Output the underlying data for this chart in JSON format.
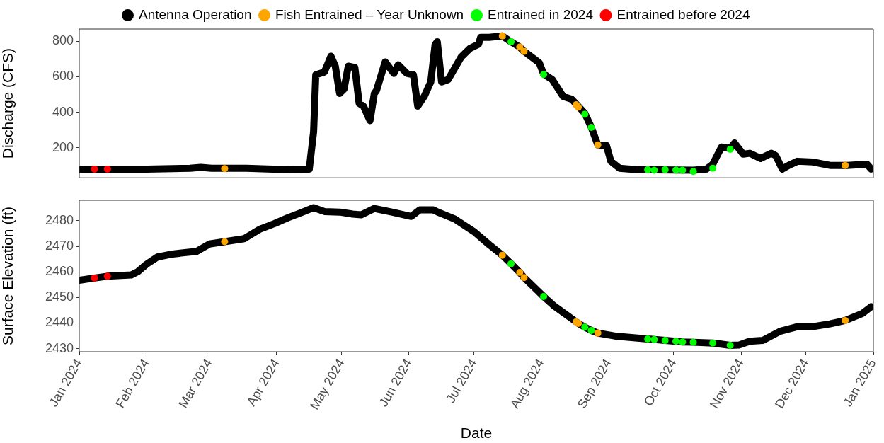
{
  "chart_data": [
    {
      "type": "line",
      "ylabel": "Discharge (CFS)",
      "legend": "top",
      "grid": false,
      "tick_labels": "y",
      "xlim": [
        "2024-01-01",
        "2025-01-01"
      ],
      "ylim": [
        31,
        869
      ],
      "yticks": [
        200,
        400,
        600,
        800
      ],
      "series": [
        {
          "name": "Antenna Operation",
          "type": "line",
          "marker": "none",
          "color": "#000000",
          "x": [
            "2024-01-01",
            "2024-02-01",
            "2024-02-21",
            "2024-02-26",
            "2024-03-02",
            "2024-03-18",
            "2024-04-04",
            "2024-04-16",
            "2024-04-18",
            "2024-04-19",
            "2024-04-23",
            "2024-04-26",
            "2024-04-28",
            "2024-04-30",
            "2024-05-02",
            "2024-05-04",
            "2024-05-07",
            "2024-05-09",
            "2024-05-11",
            "2024-05-14",
            "2024-05-16",
            "2024-05-17",
            "2024-05-21",
            "2024-05-25",
            "2024-05-27",
            "2024-05-31",
            "2024-06-03",
            "2024-06-05",
            "2024-06-08",
            "2024-06-11",
            "2024-06-13",
            "2024-06-14",
            "2024-06-16",
            "2024-06-19",
            "2024-06-22",
            "2024-06-25",
            "2024-06-29",
            "2024-07-03",
            "2024-07-04",
            "2024-07-08",
            "2024-07-14",
            "2024-07-18",
            "2024-07-22",
            "2024-07-24",
            "2024-07-31",
            "2024-08-02",
            "2024-08-06",
            "2024-08-11",
            "2024-08-15",
            "2024-08-18",
            "2024-08-21",
            "2024-08-24",
            "2024-08-27",
            "2024-08-31",
            "2024-09-02",
            "2024-09-06",
            "2024-09-14",
            "2024-10-10",
            "2024-10-16",
            "2024-10-19",
            "2024-10-23",
            "2024-10-27",
            "2024-10-29",
            "2024-11-02",
            "2024-11-05",
            "2024-11-10",
            "2024-11-15",
            "2024-11-17",
            "2024-11-20",
            "2024-11-23",
            "2024-11-27",
            "2024-12-04",
            "2024-12-12",
            "2024-12-20",
            "2024-12-29",
            "2024-12-31"
          ],
          "values": [
            80,
            80,
            85,
            90,
            85,
            85,
            78,
            80,
            290,
            611,
            627,
            716,
            660,
            506,
            530,
            660,
            652,
            450,
            434,
            353,
            506,
            523,
            684,
            619,
            668,
            619,
            611,
            434,
            490,
            571,
            781,
            797,
            571,
            584,
            648,
            711,
            759,
            783,
            822,
            822,
            830,
            797,
            767,
            743,
            679,
            616,
            584,
            489,
            473,
            434,
            394,
            315,
            216,
            212,
            124,
            85,
            77,
            74,
            80,
            108,
            204,
            196,
            227,
            164,
            169,
            140,
            169,
            156,
            80,
            101,
            124,
            120,
            101,
            101,
            108,
            80
          ]
        },
        {
          "name": "Fish Entrained – Year Unknown",
          "type": "scatter",
          "marker": "circle",
          "color": "#ffa500",
          "x": [
            "2024-03-08",
            "2024-07-14",
            "2024-07-22",
            "2024-07-24",
            "2024-08-17",
            "2024-08-18",
            "2024-08-27",
            "2024-12-19"
          ],
          "values": [
            83,
            830,
            767,
            743,
            442,
            429,
            216,
            101
          ]
        },
        {
          "name": "Entrained in 2024",
          "type": "scatter",
          "marker": "circle",
          "color": "#00ff00",
          "x": [
            "2024-07-18",
            "2024-08-02",
            "2024-08-21",
            "2024-08-24",
            "2024-09-19",
            "2024-09-22",
            "2024-09-27",
            "2024-10-02",
            "2024-10-05",
            "2024-10-10",
            "2024-10-19",
            "2024-10-27"
          ],
          "values": [
            797,
            613,
            389,
            315,
            77,
            74,
            77,
            75,
            74,
            67,
            85,
            191
          ]
        },
        {
          "name": "Entrained before 2024",
          "type": "scatter",
          "marker": "circle",
          "color": "#ff0000",
          "x": [
            "2024-01-08",
            "2024-01-14"
          ],
          "values": [
            80,
            80
          ]
        }
      ]
    },
    {
      "type": "line",
      "ylabel": "Surface Elevation (ft)",
      "xlabel": "Date",
      "legend": false,
      "grid": false,
      "xlim": [
        "2024-01-01",
        "2025-01-01"
      ],
      "xticks": [
        {
          "value": "2024-01-01",
          "label": "Jan 2024"
        },
        {
          "value": "2024-02-01",
          "label": "Feb 2024"
        },
        {
          "value": "2024-03-01",
          "label": "Mar 2024"
        },
        {
          "value": "2024-04-01",
          "label": "Apr 2024"
        },
        {
          "value": "2024-05-01",
          "label": "May 2024"
        },
        {
          "value": "2024-06-01",
          "label": "Jun 2024"
        },
        {
          "value": "2024-07-01",
          "label": "Jul 2024"
        },
        {
          "value": "2024-08-01",
          "label": "Aug 2024"
        },
        {
          "value": "2024-09-01",
          "label": "Sep 2024"
        },
        {
          "value": "2024-10-01",
          "label": "Oct 2024"
        },
        {
          "value": "2024-11-01",
          "label": "Nov 2024"
        },
        {
          "value": "2024-12-01",
          "label": "Dec 2024"
        },
        {
          "value": "2025-01-01",
          "label": "Jan 2025"
        }
      ],
      "ylim": [
        2428.8,
        2488
      ],
      "yticks": [
        2430,
        2440,
        2450,
        2460,
        2470,
        2480
      ],
      "series": [
        {
          "type": "line",
          "marker": "none",
          "color": "#000000",
          "x": [
            "2024-01-01",
            "2024-01-08",
            "2024-01-14",
            "2024-01-25",
            "2024-01-28",
            "2024-02-01",
            "2024-02-06",
            "2024-02-13",
            "2024-02-24",
            "2024-03-01",
            "2024-03-08",
            "2024-03-17",
            "2024-03-24",
            "2024-03-31",
            "2024-04-06",
            "2024-04-13",
            "2024-04-18",
            "2024-04-23",
            "2024-04-30",
            "2024-05-06",
            "2024-05-10",
            "2024-05-16",
            "2024-05-24",
            "2024-06-02",
            "2024-06-06",
            "2024-06-12",
            "2024-06-14",
            "2024-06-22",
            "2024-07-01",
            "2024-07-08",
            "2024-07-14",
            "2024-07-18",
            "2024-07-22",
            "2024-07-24",
            "2024-08-02",
            "2024-08-07",
            "2024-08-17",
            "2024-08-18",
            "2024-08-21",
            "2024-08-24",
            "2024-08-27",
            "2024-09-04",
            "2024-09-19",
            "2024-09-22",
            "2024-09-27",
            "2024-10-02",
            "2024-10-05",
            "2024-10-10",
            "2024-10-19",
            "2024-10-27",
            "2024-10-31",
            "2024-11-05",
            "2024-11-11",
            "2024-11-19",
            "2024-11-27",
            "2024-12-04",
            "2024-12-12",
            "2024-12-19",
            "2024-12-27",
            "2024-12-31"
          ],
          "values": [
            2456.7,
            2457.6,
            2458.3,
            2458.8,
            2460.1,
            2463,
            2465.8,
            2467,
            2468,
            2470.9,
            2471.8,
            2473,
            2476.6,
            2478.9,
            2481.1,
            2483.4,
            2485.1,
            2483.6,
            2483.4,
            2482.6,
            2482.3,
            2484.8,
            2483.4,
            2481.7,
            2484.3,
            2484.3,
            2483.5,
            2480.7,
            2475.7,
            2470.6,
            2466.5,
            2463.2,
            2459.8,
            2457.8,
            2450.4,
            2446.6,
            2440.5,
            2439.9,
            2438.4,
            2437.1,
            2436.1,
            2434.9,
            2433.8,
            2433.6,
            2433.2,
            2432.9,
            2432.6,
            2432.5,
            2432.2,
            2431.3,
            2431.4,
            2432.9,
            2433.2,
            2436.8,
            2438.6,
            2438.6,
            2439.7,
            2441,
            2443.8,
            2446.4
          ]
        },
        {
          "type": "scatter",
          "marker": "circle",
          "color": "#ffa500",
          "x": [
            "2024-03-08",
            "2024-07-14",
            "2024-07-22",
            "2024-07-24",
            "2024-08-17",
            "2024-08-18",
            "2024-08-27",
            "2024-12-19"
          ],
          "values": [
            2471.8,
            2466.5,
            2459.8,
            2457.8,
            2440.5,
            2439.9,
            2436.1,
            2441
          ]
        },
        {
          "type": "scatter",
          "marker": "circle",
          "color": "#00ff00",
          "x": [
            "2024-07-18",
            "2024-08-02",
            "2024-08-21",
            "2024-08-24",
            "2024-09-19",
            "2024-09-22",
            "2024-09-27",
            "2024-10-02",
            "2024-10-05",
            "2024-10-10",
            "2024-10-19",
            "2024-10-27"
          ],
          "values": [
            2463.2,
            2450.4,
            2438.4,
            2437.1,
            2433.8,
            2433.6,
            2433.2,
            2432.9,
            2432.6,
            2432.5,
            2432.2,
            2431.3
          ]
        },
        {
          "type": "scatter",
          "marker": "circle",
          "color": "#ff0000",
          "x": [
            "2024-01-08",
            "2024-01-14"
          ],
          "values": [
            2457.6,
            2458.3
          ]
        }
      ]
    }
  ]
}
